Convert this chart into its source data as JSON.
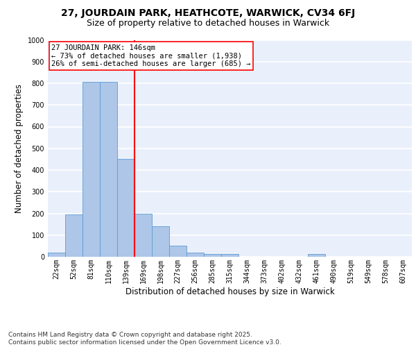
{
  "title_line1": "27, JOURDAIN PARK, HEATHCOTE, WARWICK, CV34 6FJ",
  "title_line2": "Size of property relative to detached houses in Warwick",
  "xlabel": "Distribution of detached houses by size in Warwick",
  "ylabel": "Number of detached properties",
  "categories": [
    "22sqm",
    "52sqm",
    "81sqm",
    "110sqm",
    "139sqm",
    "169sqm",
    "198sqm",
    "227sqm",
    "256sqm",
    "285sqm",
    "315sqm",
    "344sqm",
    "373sqm",
    "402sqm",
    "432sqm",
    "461sqm",
    "490sqm",
    "519sqm",
    "549sqm",
    "578sqm",
    "607sqm"
  ],
  "values": [
    20,
    195,
    805,
    805,
    450,
    200,
    140,
    50,
    18,
    12,
    12,
    0,
    0,
    0,
    0,
    12,
    0,
    0,
    0,
    0,
    0
  ],
  "bar_color": "#aec6e8",
  "bar_edge_color": "#5b9bd5",
  "vline_x": 4.5,
  "vline_color": "red",
  "vline_lw": 1.5,
  "annotation_text": "27 JOURDAIN PARK: 146sqm\n← 73% of detached houses are smaller (1,938)\n26% of semi-detached houses are larger (685) →",
  "box_color": "white",
  "box_edge_color": "red",
  "footnote": "Contains HM Land Registry data © Crown copyright and database right 2025.\nContains public sector information licensed under the Open Government Licence v3.0.",
  "ylim": [
    0,
    1000
  ],
  "yticks": [
    0,
    100,
    200,
    300,
    400,
    500,
    600,
    700,
    800,
    900,
    1000
  ],
  "background_color": "#eaf0fb",
  "grid_color": "white",
  "title_fontsize": 10,
  "subtitle_fontsize": 9,
  "axis_label_fontsize": 8.5,
  "tick_fontsize": 7,
  "annotation_fontsize": 7.5,
  "footnote_fontsize": 6.5
}
